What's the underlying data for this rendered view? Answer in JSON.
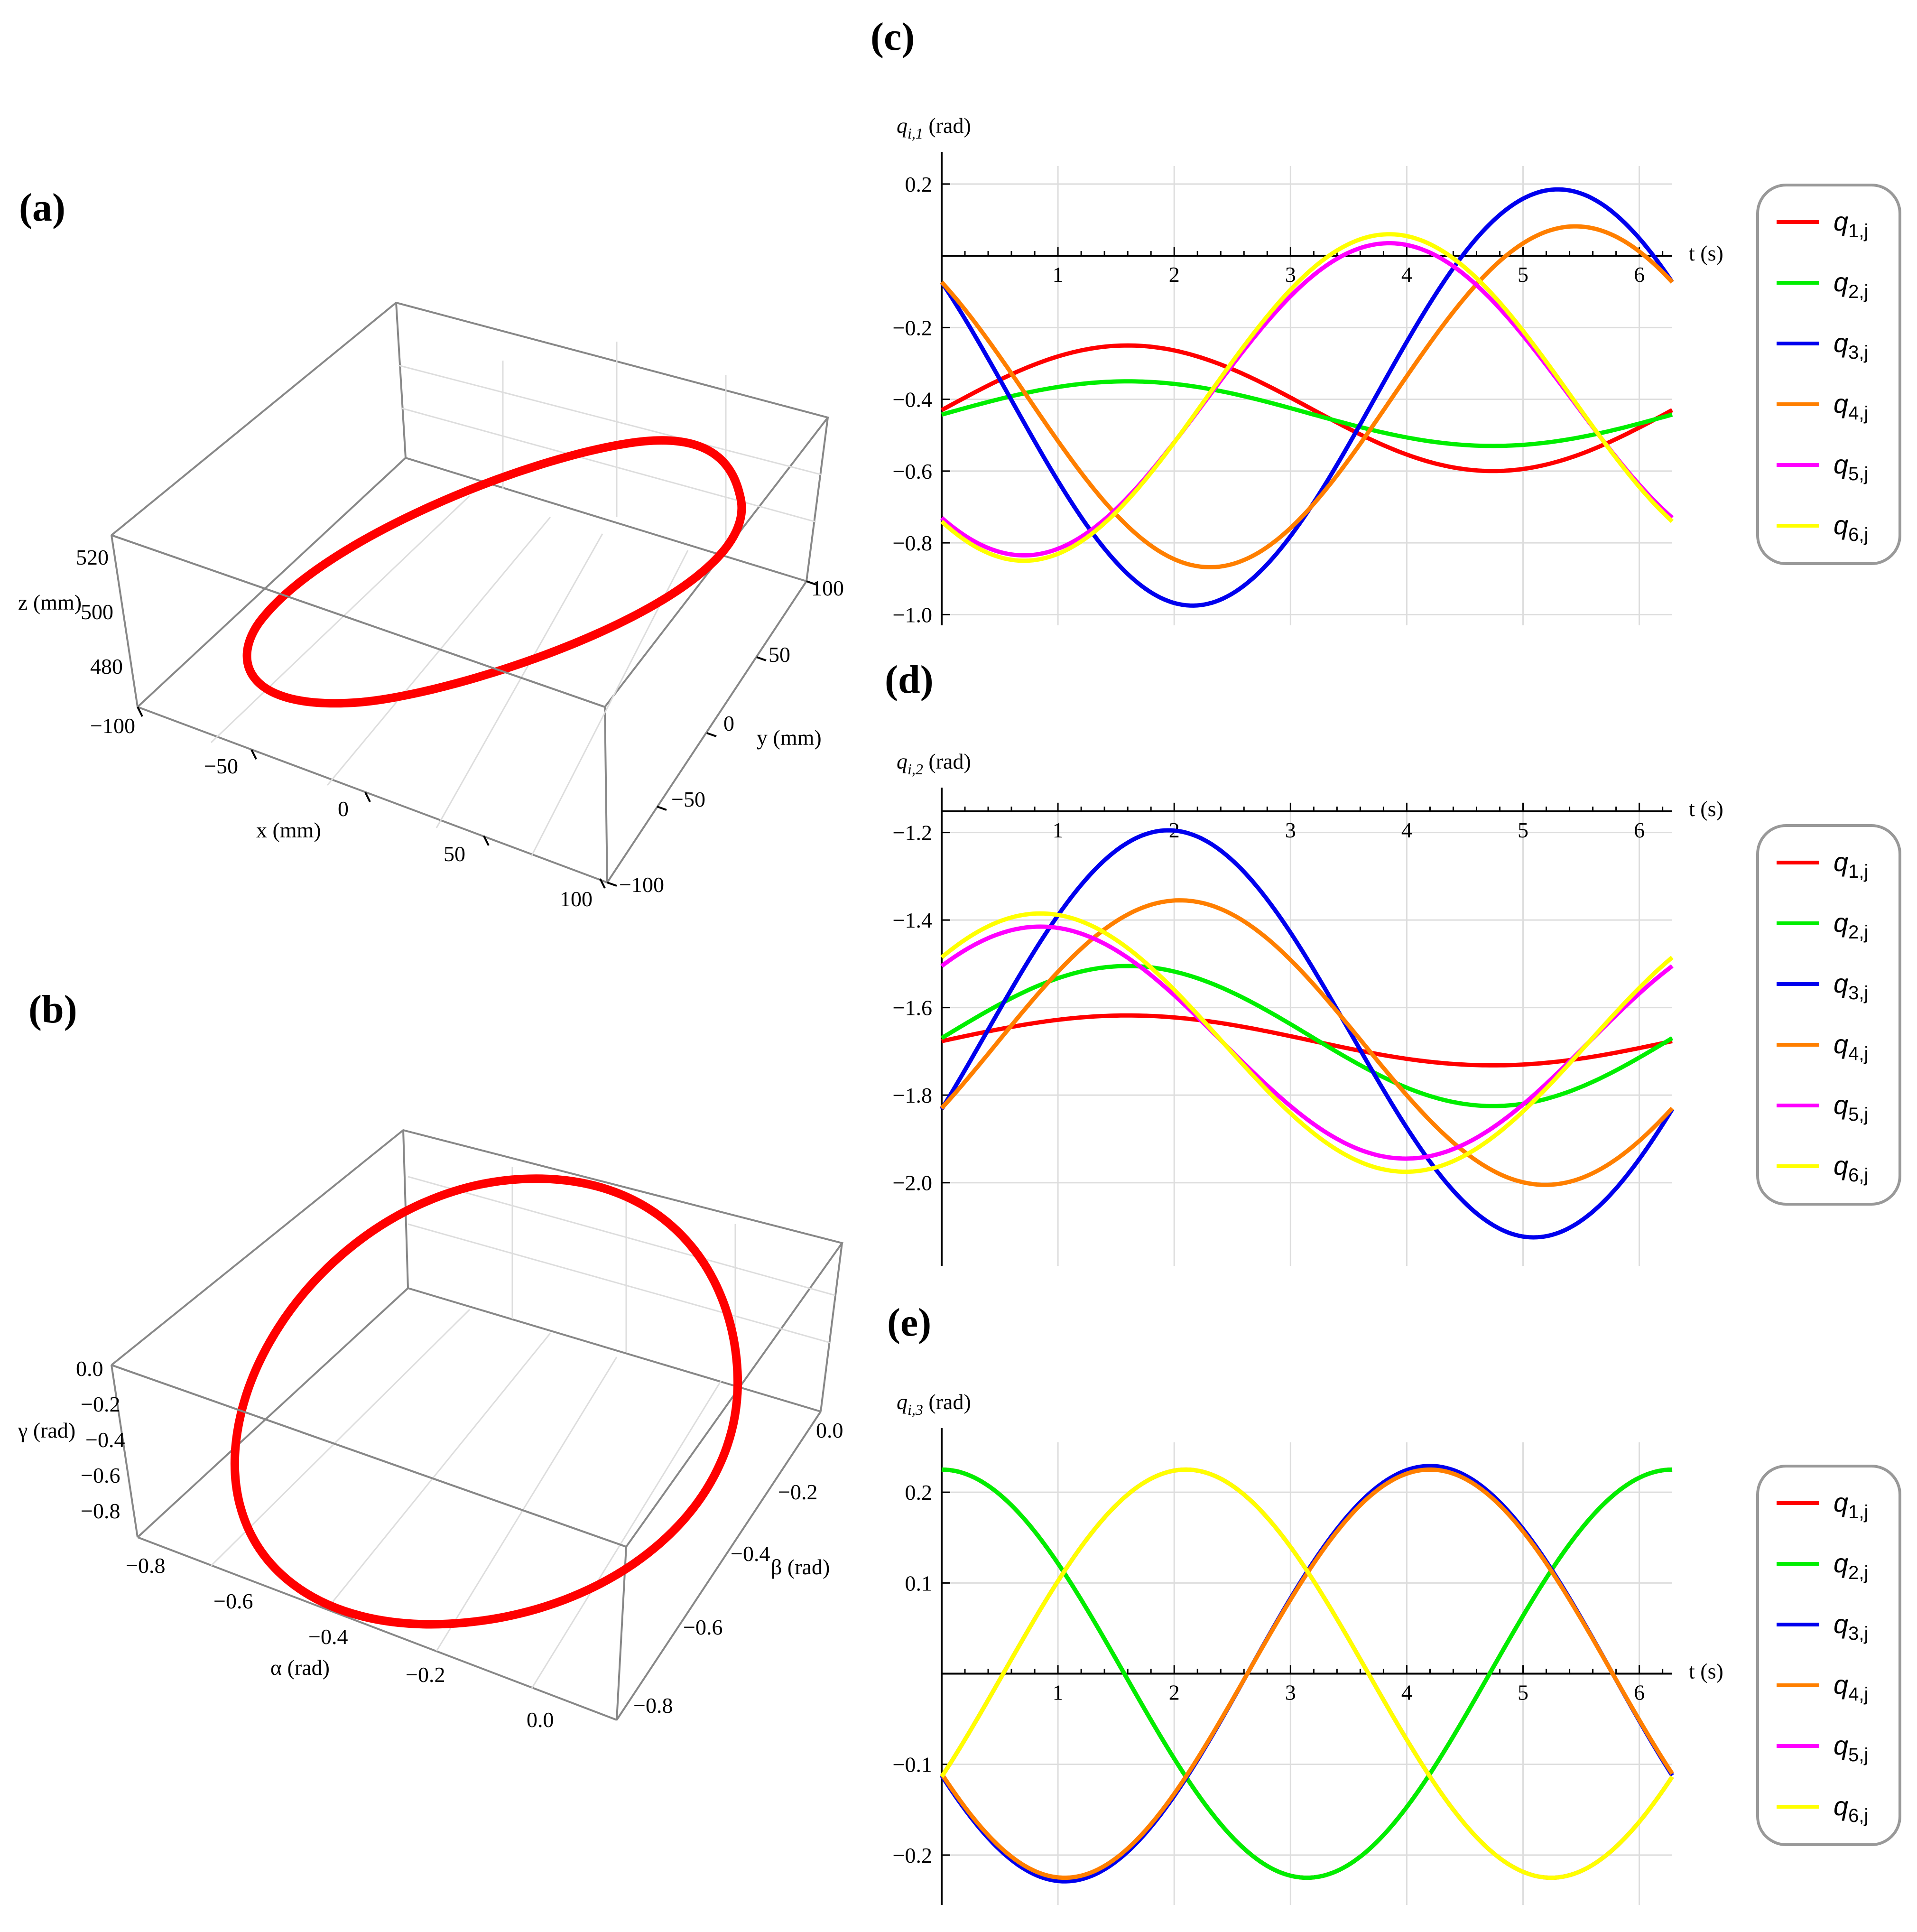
{
  "panels": {
    "a": "(a)",
    "b": "(b)",
    "c": "(c)",
    "d": "(d)",
    "e": "(e)"
  },
  "colors": {
    "q1": "#ff0000",
    "q2": "#00ee00",
    "q3": "#0000ee",
    "q4": "#ff7f00",
    "q5": "#ff00ff",
    "q6": "#ffff00",
    "curve3d": "#ff0000"
  },
  "chart_data": [
    {
      "id": "a",
      "type": "line3d",
      "description_units": "mm",
      "x_label": "x (mm)",
      "y_label": "y (mm)",
      "z_label": "z (mm)",
      "x_ticks": [
        "−100",
        "−50",
        "0",
        "50",
        "100"
      ],
      "y_ticks": [
        "100",
        "50",
        "0",
        "−50",
        "−100"
      ],
      "z_ticks": [
        "520",
        "500",
        "480"
      ],
      "xlim": [
        -100,
        100
      ],
      "ylim": [
        -100,
        100
      ],
      "zlim": [
        470,
        530
      ],
      "curve": "ellipse through (x from -100 to 100) tilted in z 470..530"
    },
    {
      "id": "b",
      "type": "line3d",
      "x_label": "α (rad)",
      "y_label": "β (rad)",
      "z_label": "γ (rad)",
      "x_ticks": [
        "−0.8",
        "−0.6",
        "−0.4",
        "−0.2",
        "0.0"
      ],
      "y_ticks": [
        "0.0",
        "−0.2",
        "−0.4",
        "−0.6",
        "−0.8"
      ],
      "z_ticks": [
        "0.0",
        "−0.2",
        "−0.4",
        "−0.6",
        "−0.8"
      ],
      "xlim": [
        -0.85,
        0.05
      ],
      "ylim": [
        -0.85,
        0.05
      ],
      "zlim": [
        -0.85,
        0.05
      ]
    },
    {
      "id": "c",
      "type": "line",
      "ylabel": "q",
      "ylabel_sub": "i,1",
      "ylabel_unit": " (rad)",
      "xlabel": "t (s)",
      "xlim": [
        0,
        6.283
      ],
      "ylim": [
        -1.03,
        0.25
      ],
      "x_ticks": [
        "1",
        "2",
        "3",
        "4",
        "5",
        "6"
      ],
      "y_ticks": [
        {
          "v": 0.2,
          "label": "0.2"
        },
        {
          "v": -0.2,
          "label": "−0.2"
        },
        {
          "v": -0.4,
          "label": "−0.4"
        },
        {
          "v": -0.6,
          "label": "−0.6"
        },
        {
          "v": -0.8,
          "label": "−0.8"
        },
        {
          "v": -1.0,
          "label": "−1.0"
        }
      ],
      "series": [
        {
          "name": "q1,j",
          "key": "q1",
          "offset": -0.425,
          "amp": 0.175,
          "peak_t": 1.6
        },
        {
          "name": "q2,j",
          "key": "q2",
          "offset": -0.44,
          "amp": 0.09,
          "peak_t": 1.6
        },
        {
          "name": "q3,j",
          "key": "q3",
          "offset": -0.395,
          "amp": 0.58,
          "peak_t": 5.3
        },
        {
          "name": "q4,j",
          "key": "q4",
          "offset": -0.393,
          "amp": 0.475,
          "peak_t": 5.45
        },
        {
          "name": "q5,j",
          "key": "q5",
          "offset": -0.4,
          "amp": 0.435,
          "peak_t": 3.85
        },
        {
          "name": "q6,j",
          "key": "q6",
          "offset": -0.395,
          "amp": 0.455,
          "peak_t": 3.85
        }
      ]
    },
    {
      "id": "d",
      "type": "line",
      "ylabel": "q",
      "ylabel_sub": "i,2",
      "ylabel_unit": " (rad)",
      "xlabel": "t (s)",
      "xlim": [
        0,
        6.283
      ],
      "ylim": [
        -2.19,
        -1.13
      ],
      "x_ticks": [
        "1",
        "2",
        "3",
        "4",
        "5",
        "6"
      ],
      "y_ticks": [
        {
          "v": -1.2,
          "label": "−1.2"
        },
        {
          "v": -1.4,
          "label": "−1.4"
        },
        {
          "v": -1.6,
          "label": "−1.6"
        },
        {
          "v": -1.8,
          "label": "−1.8"
        },
        {
          "v": -2.0,
          "label": "−2.0"
        }
      ],
      "series": [
        {
          "name": "q1,j",
          "key": "q1",
          "offset": -1.675,
          "amp": 0.057,
          "peak_t": 1.6
        },
        {
          "name": "q2,j",
          "key": "q2",
          "offset": -1.665,
          "amp": 0.16,
          "peak_t": 1.6
        },
        {
          "name": "q3,j",
          "key": "q3",
          "offset": -1.66,
          "amp": 0.465,
          "peak_t": 1.95
        },
        {
          "name": "q4,j",
          "key": "q4",
          "offset": -1.68,
          "amp": 0.325,
          "peak_t": 2.05
        },
        {
          "name": "q5,j",
          "key": "q5",
          "offset": -1.68,
          "amp": 0.265,
          "peak_t": 0.85
        },
        {
          "name": "q6,j",
          "key": "q6",
          "offset": -1.68,
          "amp": 0.295,
          "peak_t": 0.85
        }
      ]
    },
    {
      "id": "e",
      "type": "line",
      "ylabel": "q",
      "ylabel_sub": "i,3",
      "ylabel_unit": " (rad)",
      "xlabel": "t (s)",
      "xlim": [
        0,
        6.283
      ],
      "ylim": [
        -0.255,
        0.255
      ],
      "x_ticks": [
        "1",
        "2",
        "3",
        "4",
        "5",
        "6"
      ],
      "y_ticks": [
        {
          "v": 0.2,
          "label": "0.2"
        },
        {
          "v": 0.1,
          "label": "0.1"
        },
        {
          "v": -0.1,
          "label": "−0.1"
        },
        {
          "v": -0.2,
          "label": "−0.2"
        }
      ],
      "series": [
        {
          "name": "q1,j",
          "key": "q1",
          "offset": 0.0,
          "amp": 0.225,
          "peak_t": 0.0
        },
        {
          "name": "q2,j",
          "key": "q2",
          "offset": 0.0,
          "amp": 0.225,
          "peak_t": 0.0
        },
        {
          "name": "q3,j",
          "key": "q3",
          "offset": 0.0,
          "amp": 0.229,
          "peak_t": 4.2
        },
        {
          "name": "q4,j",
          "key": "q4",
          "offset": 0.0,
          "amp": 0.225,
          "peak_t": 4.2
        },
        {
          "name": "q5,j",
          "key": "q5",
          "offset": 0.0,
          "amp": 0.225,
          "peak_t": 2.1
        },
        {
          "name": "q6,j",
          "key": "q6",
          "offset": 0.0,
          "amp": 0.225,
          "peak_t": 2.1
        }
      ]
    }
  ],
  "legend": [
    {
      "q": "q",
      "sub": "1,j",
      "key": "q1"
    },
    {
      "q": "q",
      "sub": "2,j",
      "key": "q2"
    },
    {
      "q": "q",
      "sub": "3,j",
      "key": "q3"
    },
    {
      "q": "q",
      "sub": "4,j",
      "key": "q4"
    },
    {
      "q": "q",
      "sub": "5,j",
      "key": "q5"
    },
    {
      "q": "q",
      "sub": "6,j",
      "key": "q6"
    }
  ]
}
